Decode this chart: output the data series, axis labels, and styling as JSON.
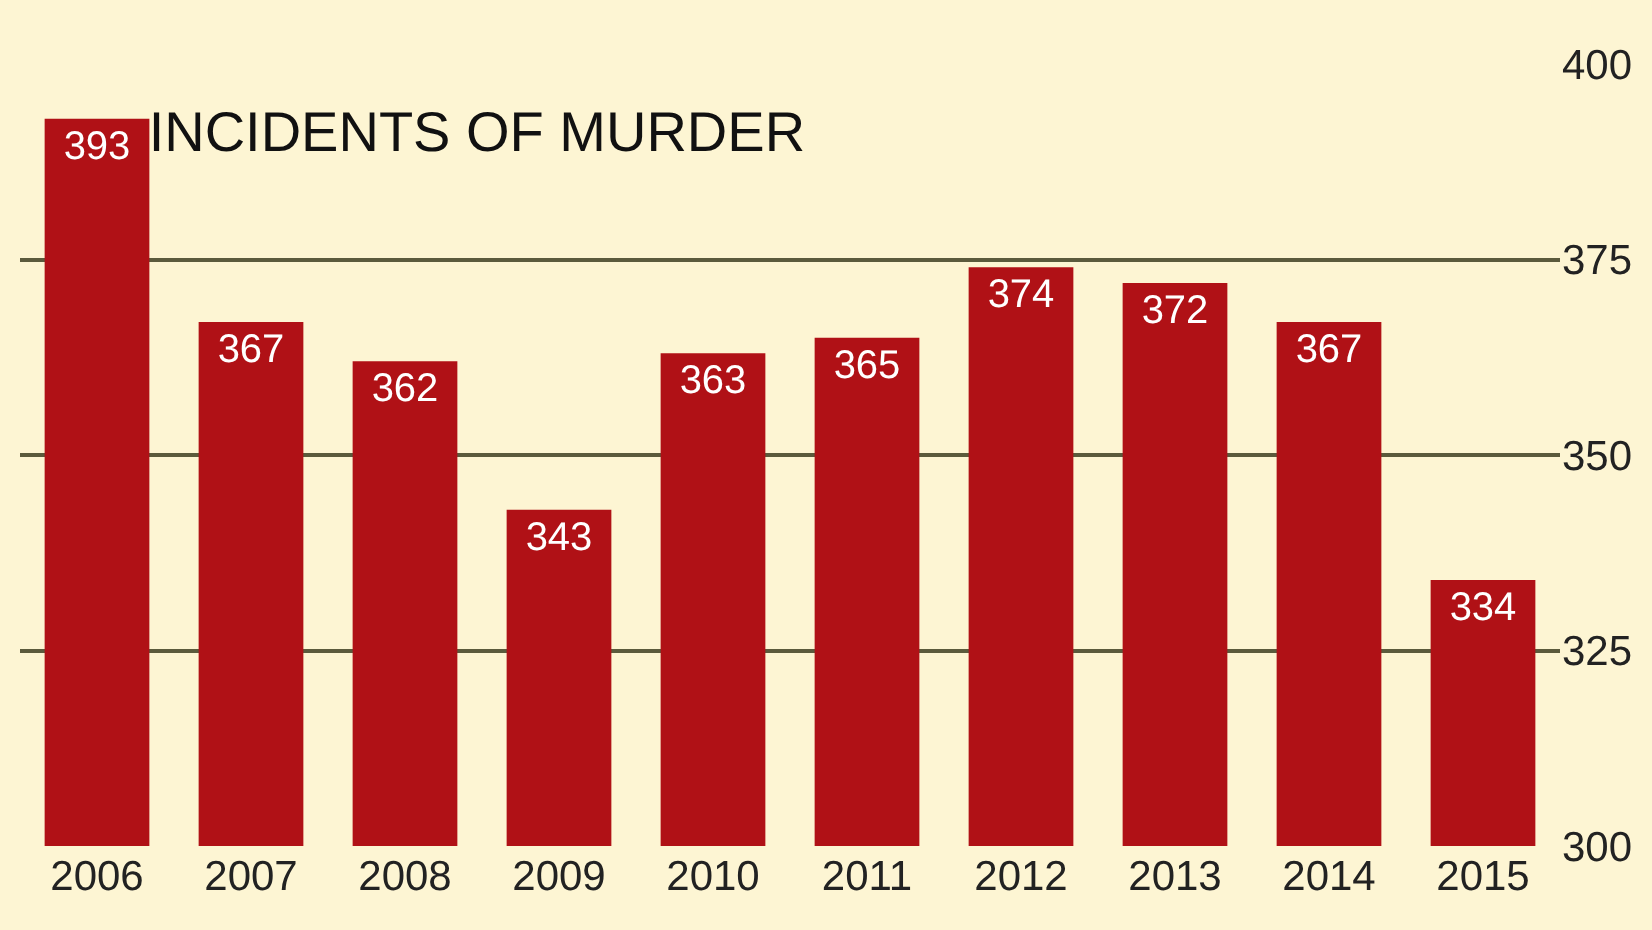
{
  "chart_data": {
    "type": "bar",
    "title": "INCIDENTS OF MURDER",
    "categories": [
      "2006",
      "2007",
      "2008",
      "2009",
      "2010",
      "2011",
      "2012",
      "2013",
      "2014",
      "2015"
    ],
    "values": [
      393,
      367,
      362,
      343,
      363,
      365,
      374,
      372,
      367,
      334
    ],
    "color": "#b01116",
    "ylim": [
      300,
      400
    ],
    "yticks": [
      300,
      325,
      350,
      375,
      400
    ],
    "grid": "y",
    "data_labels": true
  }
}
